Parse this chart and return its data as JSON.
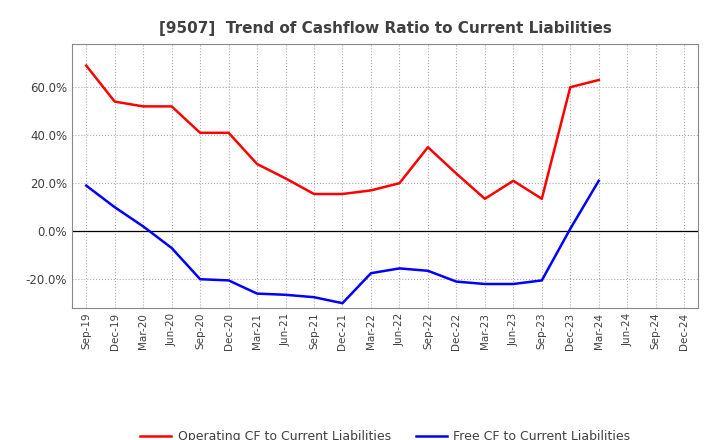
{
  "title": "[9507]  Trend of Cashflow Ratio to Current Liabilities",
  "x_labels": [
    "Sep-19",
    "Dec-19",
    "Mar-20",
    "Jun-20",
    "Sep-20",
    "Dec-20",
    "Mar-21",
    "Jun-21",
    "Sep-21",
    "Dec-21",
    "Mar-22",
    "Jun-22",
    "Sep-22",
    "Dec-22",
    "Mar-23",
    "Jun-23",
    "Sep-23",
    "Dec-23",
    "Mar-24",
    "Jun-24",
    "Sep-24",
    "Dec-24"
  ],
  "operating_cf": [
    0.69,
    0.54,
    0.52,
    0.52,
    0.41,
    0.41,
    0.28,
    0.22,
    0.155,
    0.155,
    0.17,
    0.2,
    0.35,
    0.24,
    0.135,
    0.21,
    0.135,
    0.6,
    0.63,
    null,
    null,
    null
  ],
  "free_cf": [
    0.19,
    0.1,
    0.02,
    -0.07,
    -0.2,
    -0.205,
    -0.26,
    -0.265,
    -0.275,
    -0.3,
    -0.175,
    -0.155,
    -0.165,
    -0.21,
    -0.22,
    -0.22,
    -0.205,
    0.01,
    0.21,
    null,
    null,
    null
  ],
  "ylim": [
    -0.32,
    0.78
  ],
  "yticks": [
    -0.2,
    0.0,
    0.2,
    0.4,
    0.6
  ],
  "operating_color": "#FF0000",
  "free_color": "#0000FF",
  "bg_color": "#FFFFFF",
  "grid_color": "#AAAAAA",
  "title_color": "#404040",
  "legend_labels": [
    "Operating CF to Current Liabilities",
    "Free CF to Current Liabilities"
  ]
}
